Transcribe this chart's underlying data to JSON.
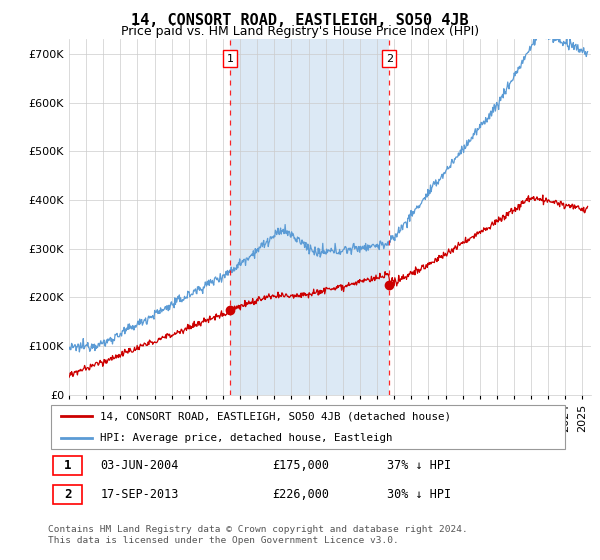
{
  "title": "14, CONSORT ROAD, EASTLEIGH, SO50 4JB",
  "subtitle": "Price paid vs. HM Land Registry's House Price Index (HPI)",
  "ytick_values": [
    0,
    100000,
    200000,
    300000,
    400000,
    500000,
    600000,
    700000
  ],
  "ylim": [
    0,
    730000
  ],
  "xlim_start": 1995.0,
  "xlim_end": 2025.5,
  "hpi_color": "#5b9bd5",
  "price_color": "#cc0000",
  "shade_color": "#dce9f5",
  "marker1_date": 2004.42,
  "marker1_price": 175000,
  "marker2_date": 2013.71,
  "marker2_price": 226000,
  "legend_label1": "14, CONSORT ROAD, EASTLEIGH, SO50 4JB (detached house)",
  "legend_label2": "HPI: Average price, detached house, Eastleigh",
  "table_row1": [
    "1",
    "03-JUN-2004",
    "£175,000",
    "37% ↓ HPI"
  ],
  "table_row2": [
    "2",
    "17-SEP-2013",
    "£226,000",
    "30% ↓ HPI"
  ],
  "footnote": "Contains HM Land Registry data © Crown copyright and database right 2024.\nThis data is licensed under the Open Government Licence v3.0.",
  "bg_color": "#ffffff",
  "grid_color": "#cccccc",
  "title_fontsize": 11,
  "subtitle_fontsize": 9,
  "tick_fontsize": 8
}
